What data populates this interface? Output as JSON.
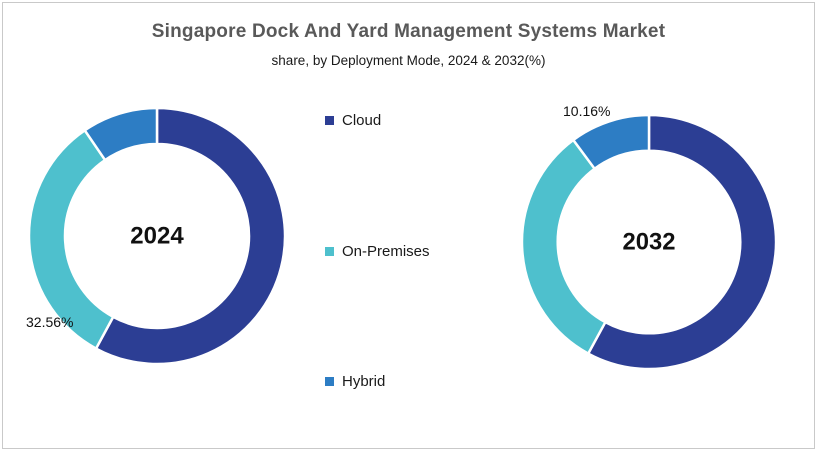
{
  "header": {
    "title": "Singapore Dock And Yard Management Systems Market",
    "subtitle": "share, by Deployment Mode, 2024 & 2032(%)"
  },
  "colors": {
    "cloud": "#2C3E94",
    "on_premises": "#4EC0CD",
    "hybrid": "#2D7DC4",
    "title_text": "#595959",
    "frame_border": "#C9C9C9",
    "background": "#FFFFFF"
  },
  "legend": {
    "position": "center-column-between-charts",
    "items": [
      {
        "label": "Cloud",
        "color": "#2C3E94"
      },
      {
        "label": "On-Premises",
        "color": "#4EC0CD"
      },
      {
        "label": "Hybrid",
        "color": "#2D7DC4"
      }
    ]
  },
  "chart_data": {
    "type": "pie",
    "subtype": "donut",
    "title": "Singapore Dock And Yard Management Systems Market",
    "subtitle": "share, by Deployment Mode, 2024 & 2032(%)",
    "categories": [
      "Cloud",
      "On-Premises",
      "Hybrid"
    ],
    "colors": [
      "#2C3E94",
      "#4EC0CD",
      "#2D7DC4"
    ],
    "start_angle_deg": 0,
    "direction": "clockwise",
    "inner_radius_ratio": 0.72,
    "slice_separator_color": "#FFFFFF",
    "charts": [
      {
        "center_label": "2024",
        "values": [
          57.9,
          32.56,
          9.54
        ],
        "labeled_slices": [
          {
            "category": "On-Premises",
            "value": 32.56,
            "text": "32.56%"
          }
        ]
      },
      {
        "center_label": "2032",
        "values": [
          57.94,
          31.9,
          10.16
        ],
        "labeled_slices": [
          {
            "category": "Hybrid",
            "value": 10.16,
            "text": "10.16%"
          }
        ]
      }
    ]
  }
}
